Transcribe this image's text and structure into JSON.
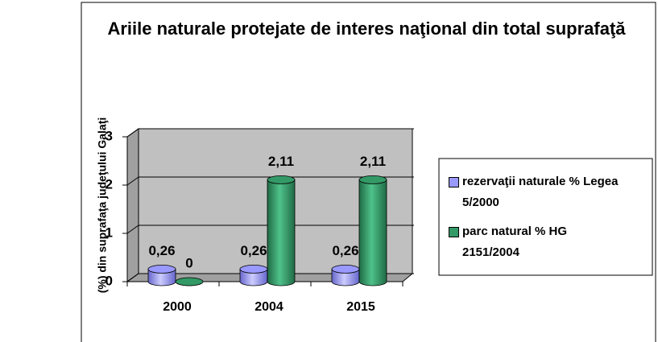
{
  "chart_data": {
    "type": "bar",
    "title": "Ariile naturale protejate de interes naţional din total suprafaţă",
    "y_label": "(%) din suprafaţa judeţului Galaţi",
    "categories": [
      "2000",
      "2004",
      "2015"
    ],
    "series": [
      {
        "name": "rezervaţii naturale % Legea 5/2000",
        "color": "#9999ff",
        "values": [
          0.26,
          0.26,
          0.26
        ],
        "value_labels": [
          "0,26",
          "0,26",
          "0,26"
        ]
      },
      {
        "name": "parc natural % HG 2151/2004",
        "color": "#339966",
        "values": [
          0,
          2.11,
          2.11
        ],
        "value_labels": [
          "0",
          "2,11",
          "2,11"
        ]
      }
    ],
    "ylim": [
      0,
      3
    ],
    "yticks": [
      0,
      1,
      2,
      3
    ],
    "grid": true,
    "legend": "right"
  }
}
